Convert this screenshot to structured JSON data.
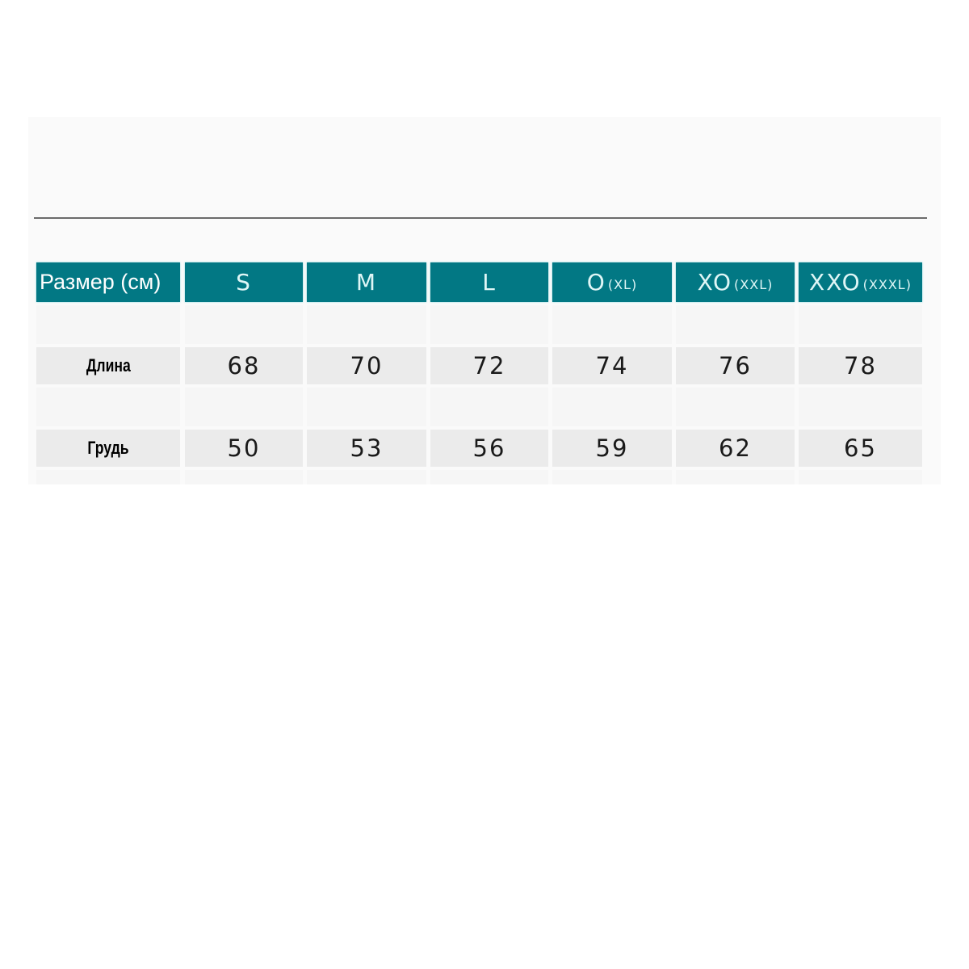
{
  "table": {
    "header_color": "#027884",
    "corner_label": "Размер (см)",
    "sizes": [
      {
        "main": "S",
        "sub": ""
      },
      {
        "main": "M",
        "sub": ""
      },
      {
        "main": "L",
        "sub": ""
      },
      {
        "main": "O",
        "sub": "(XL)"
      },
      {
        "main": "XO",
        "sub": "(XXL)"
      },
      {
        "main": "XXO",
        "sub": "(XXXL)"
      }
    ],
    "rows": [
      {
        "label": "Длина",
        "values": [
          "68",
          "70",
          "72",
          "74",
          "76",
          "78"
        ]
      },
      {
        "label": "Грудь",
        "values": [
          "50",
          "53",
          "56",
          "59",
          "62",
          "65"
        ]
      }
    ]
  }
}
